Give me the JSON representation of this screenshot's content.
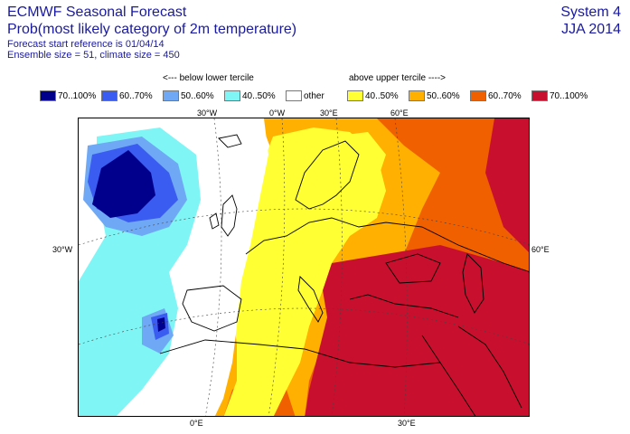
{
  "header": {
    "title": "ECMWF Seasonal Forecast",
    "subtitle": "Prob(most likely category of 2m temperature)",
    "start_reference": "Forecast start reference is 01/04/14",
    "ensemble": "Ensemble size = 51, climate size = 450",
    "system": "System 4",
    "season": "JJA 2014"
  },
  "legend": {
    "below_heading": "<--- below lower tercile",
    "above_heading": "above upper tercile ---->",
    "items": [
      {
        "label": "70..100%",
        "color": "#00008c"
      },
      {
        "label": "60..70%",
        "color": "#3a5cf0"
      },
      {
        "label": "50..60%",
        "color": "#6fa8f5"
      },
      {
        "label": "40..50%",
        "color": "#7ff5f5"
      },
      {
        "label": "other",
        "color": "#ffffff"
      },
      {
        "label": "40..50%",
        "color": "#ffff33"
      },
      {
        "label": "50..60%",
        "color": "#ffb000"
      },
      {
        "label": "60..70%",
        "color": "#f06000"
      },
      {
        "label": "70..100%",
        "color": "#c8102e"
      }
    ]
  },
  "axes": {
    "top": [
      "30°W",
      "0°W",
      "30°E",
      "60°E"
    ],
    "left": [
      "30°W"
    ],
    "right": [
      "60°E"
    ],
    "bottom": [
      "0°E",
      "30°E"
    ]
  }
}
